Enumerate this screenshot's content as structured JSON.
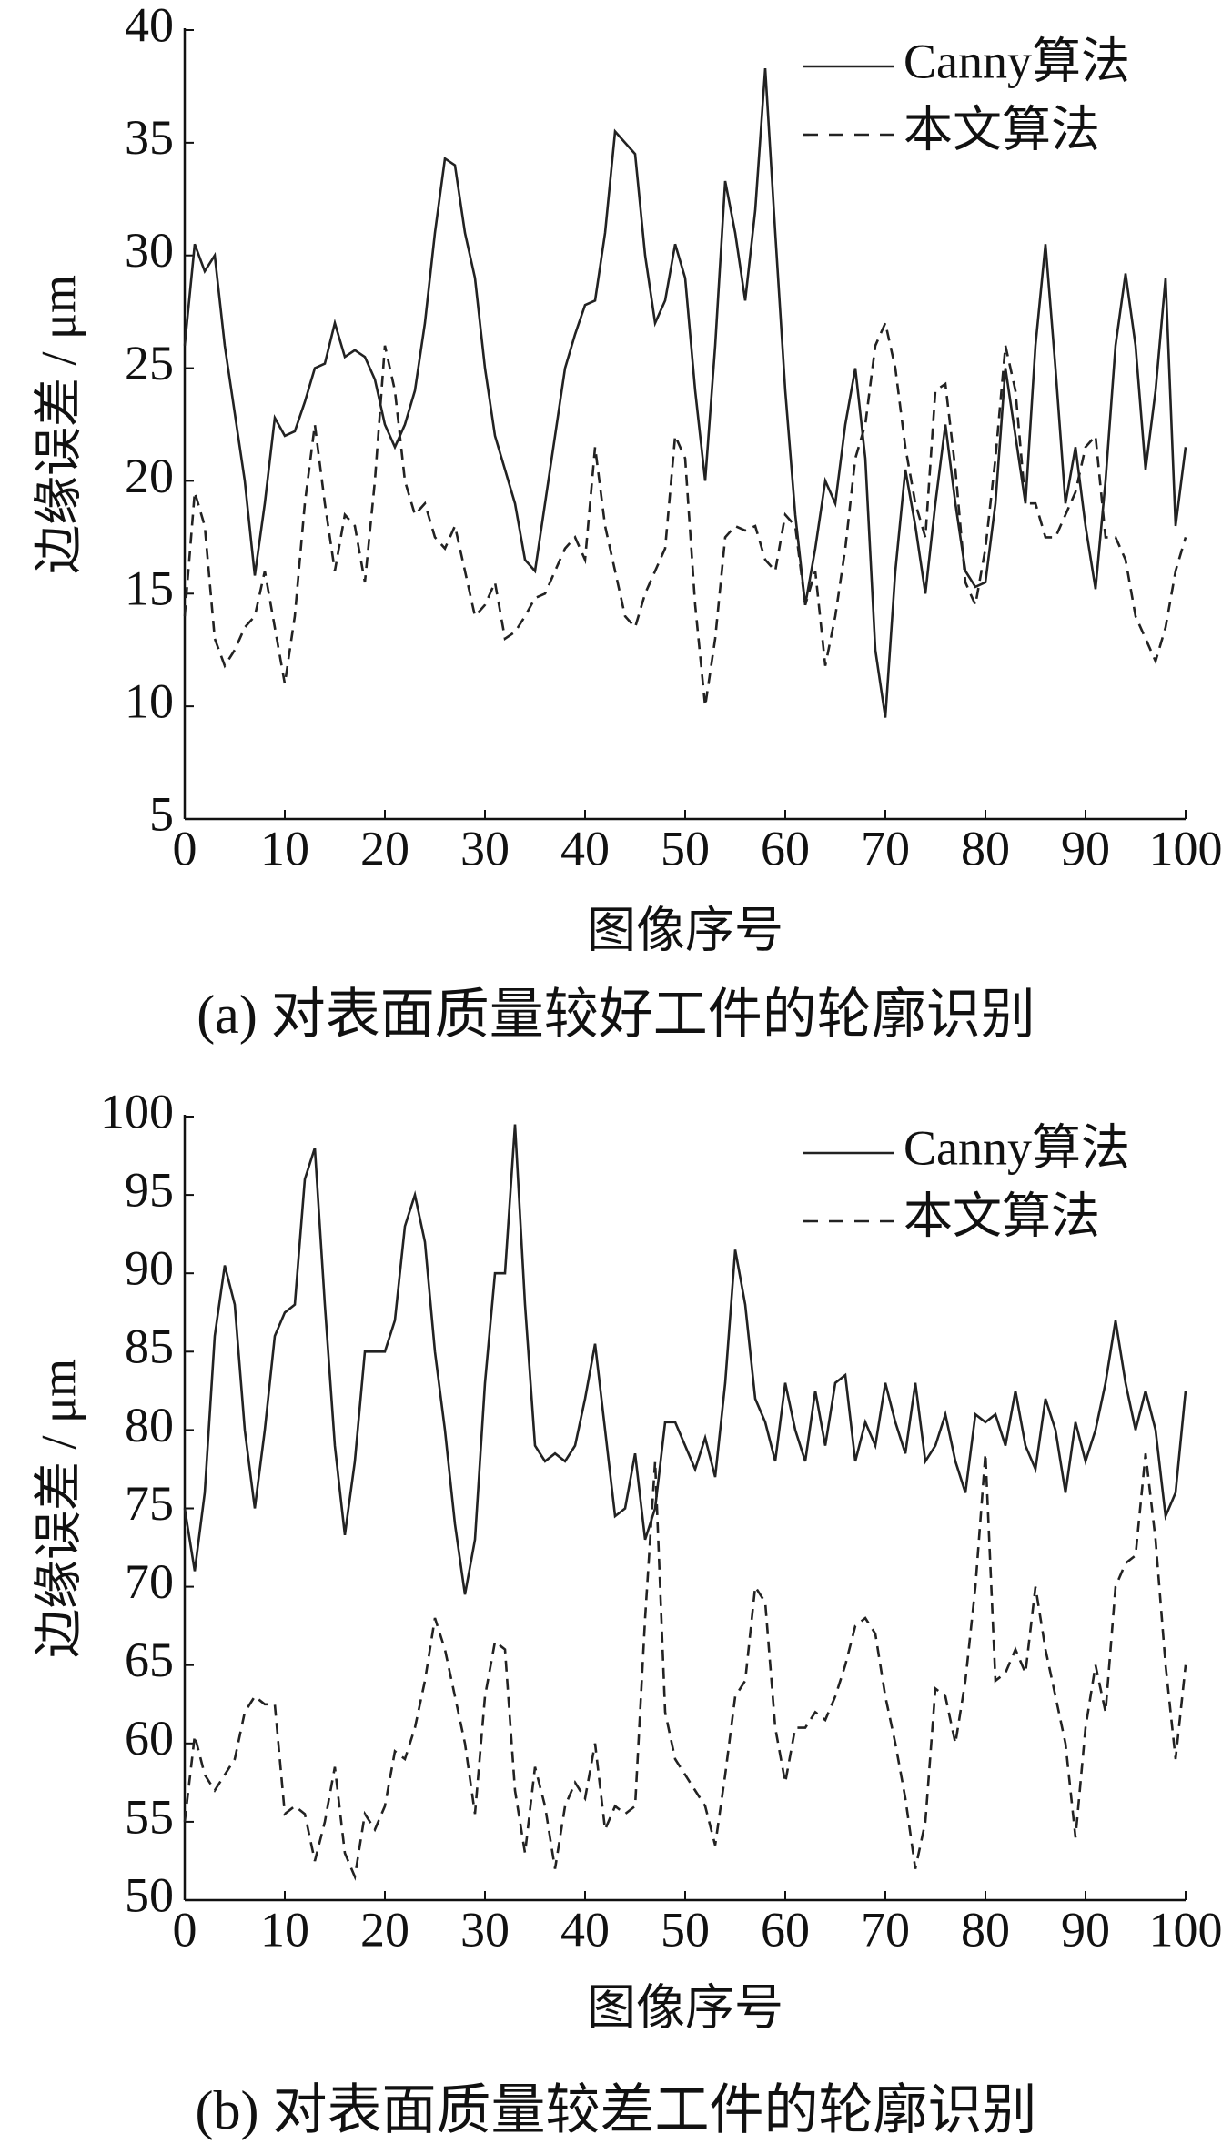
{
  "chart_data": [
    {
      "type": "line",
      "title": "(a)  对表面质量较好工件的轮廓识别",
      "xlabel": "图像序号",
      "ylabel": "边缘误差 / μm",
      "xlim": [
        0,
        100
      ],
      "xticks": [
        0,
        10,
        20,
        30,
        40,
        50,
        60,
        70,
        80,
        90,
        100
      ],
      "ylim": [
        5,
        40
      ],
      "yticks": [
        5,
        10,
        15,
        20,
        25,
        30,
        35,
        40
      ],
      "legend": "upper right",
      "x": [
        0,
        1,
        2,
        3,
        4,
        5,
        6,
        7,
        8,
        9,
        10,
        11,
        12,
        13,
        14,
        15,
        16,
        17,
        18,
        19,
        20,
        21,
        22,
        23,
        24,
        25,
        26,
        27,
        28,
        29,
        30,
        31,
        32,
        33,
        34,
        35,
        36,
        37,
        38,
        39,
        40,
        41,
        42,
        43,
        44,
        45,
        46,
        47,
        48,
        49,
        50,
        51,
        52,
        53,
        54,
        55,
        56,
        57,
        58,
        59,
        60,
        61,
        62,
        63,
        64,
        65,
        66,
        67,
        68,
        69,
        70,
        71,
        72,
        73,
        74,
        75,
        76,
        77,
        78,
        79,
        80,
        81,
        82,
        83,
        84,
        85,
        86,
        87,
        88,
        89,
        90,
        91,
        92,
        93,
        94,
        95,
        96,
        97,
        98,
        99,
        100
      ],
      "series": [
        {
          "name": "Canny算法",
          "color": "#222222",
          "dash": "solid",
          "values": [
            26,
            30.5,
            29.3,
            30,
            26,
            23,
            20,
            15.8,
            19,
            22.8,
            22,
            22.2,
            23.5,
            25,
            25.2,
            27,
            25.5,
            25.8,
            25.5,
            24.5,
            22.5,
            21.5,
            22.5,
            24,
            27,
            31,
            34.3,
            34,
            31,
            29,
            25,
            22,
            20.5,
            19,
            16.5,
            16,
            19,
            22,
            25,
            26.5,
            27.8,
            28,
            31,
            35.5,
            35,
            34.5,
            30,
            27,
            28,
            30.5,
            29,
            24,
            20,
            26,
            33.3,
            31,
            28,
            32,
            38.3,
            31,
            24,
            18.5,
            14.5,
            17,
            20,
            19,
            22.5,
            25,
            21,
            12.5,
            9.5,
            16,
            20.5,
            18,
            15,
            19,
            22.5,
            19,
            16,
            15.3,
            15.5,
            19,
            25,
            22,
            19,
            26,
            30.5,
            25,
            19,
            21.5,
            18,
            15.2,
            20,
            26,
            29.2,
            26,
            20.5,
            24,
            29,
            18,
            21.5
          ]
        },
        {
          "name": "本文算法",
          "color": "#222222",
          "dash": "dashed",
          "values": [
            14,
            19.5,
            18,
            13,
            11.8,
            12.5,
            13.5,
            14,
            16,
            13.5,
            11,
            14,
            19,
            22.5,
            19,
            16,
            18.5,
            18,
            15.5,
            20,
            26,
            24,
            20,
            18.5,
            19,
            17.5,
            17,
            18,
            16,
            14,
            14.5,
            15.5,
            13,
            13.3,
            14,
            14.8,
            15,
            16,
            17,
            17.5,
            16.5,
            21.5,
            18,
            16,
            14,
            13.5,
            15,
            16,
            17,
            22,
            21,
            14.5,
            10,
            13,
            17.5,
            18,
            17.8,
            18,
            16.5,
            16,
            18.5,
            18,
            14.5,
            16,
            11.8,
            14,
            17,
            21,
            22.5,
            26,
            27,
            25,
            21.5,
            19,
            17.5,
            24,
            24.3,
            20.5,
            15.5,
            14.5,
            17,
            21,
            26,
            24,
            19,
            19,
            17.5,
            17.5,
            18.5,
            19.5,
            21.5,
            22,
            17.5,
            17.5,
            16.5,
            14,
            13,
            12,
            13.5,
            16,
            17.5
          ]
        }
      ]
    },
    {
      "type": "line",
      "title": "(b)  对表面质量较差工件的轮廓识别",
      "xlabel": "图像序号",
      "ylabel": "边缘误差 / μm",
      "xlim": [
        0,
        100
      ],
      "xticks": [
        0,
        10,
        20,
        30,
        40,
        50,
        60,
        70,
        80,
        90,
        100
      ],
      "ylim": [
        50,
        100
      ],
      "yticks": [
        50,
        55,
        60,
        65,
        70,
        75,
        80,
        85,
        90,
        95,
        100
      ],
      "legend": "upper right",
      "x": [
        0,
        1,
        2,
        3,
        4,
        5,
        6,
        7,
        8,
        9,
        10,
        11,
        12,
        13,
        14,
        15,
        16,
        17,
        18,
        19,
        20,
        21,
        22,
        23,
        24,
        25,
        26,
        27,
        28,
        29,
        30,
        31,
        32,
        33,
        34,
        35,
        36,
        37,
        38,
        39,
        40,
        41,
        42,
        43,
        44,
        45,
        46,
        47,
        48,
        49,
        50,
        51,
        52,
        53,
        54,
        55,
        56,
        57,
        58,
        59,
        60,
        61,
        62,
        63,
        64,
        65,
        66,
        67,
        68,
        69,
        70,
        71,
        72,
        73,
        74,
        75,
        76,
        77,
        78,
        79,
        80,
        81,
        82,
        83,
        84,
        85,
        86,
        87,
        88,
        89,
        90,
        91,
        92,
        93,
        94,
        95,
        96,
        97,
        98,
        99,
        100
      ],
      "series": [
        {
          "name": "Canny算法",
          "color": "#222222",
          "dash": "solid",
          "values": [
            75,
            71,
            76,
            86,
            90.5,
            88,
            80,
            75,
            80,
            86,
            87.5,
            88,
            96,
            98,
            88,
            79,
            73.3,
            78,
            85,
            85,
            85,
            87,
            93,
            95,
            92,
            85,
            80,
            74,
            69.5,
            73,
            83,
            90,
            90,
            99.5,
            88,
            79,
            78,
            78.5,
            78,
            79,
            82,
            85.5,
            80,
            74.5,
            75,
            78.5,
            73,
            75,
            80.5,
            80.5,
            79,
            77.5,
            79.5,
            77,
            83,
            91.5,
            88,
            82,
            80.5,
            78,
            83,
            80,
            78,
            82.5,
            79,
            83,
            83.5,
            78,
            80.5,
            79,
            83,
            80.5,
            78.5,
            83,
            78,
            79,
            81,
            78,
            76,
            81,
            80.5,
            81,
            79,
            82.5,
            79,
            77.5,
            82,
            80,
            76,
            80.5,
            78,
            80,
            83,
            87,
            83,
            80,
            82.5,
            80,
            74.5,
            76,
            82.5
          ]
        },
        {
          "name": "本文算法",
          "color": "#222222",
          "dash": "dashed",
          "values": [
            55,
            60.5,
            58,
            57,
            58,
            59,
            62,
            63,
            62.5,
            62.5,
            55.5,
            56,
            55.5,
            52.5,
            55,
            58.5,
            53,
            51.5,
            55.5,
            54.5,
            56,
            59.5,
            59,
            61,
            64,
            68,
            66,
            63,
            60,
            55.5,
            63,
            66.5,
            66,
            57,
            53,
            58.5,
            56,
            52,
            56,
            57.5,
            56.5,
            60,
            54.5,
            56,
            55.5,
            56,
            68,
            78,
            62,
            59,
            58,
            57,
            56,
            53.5,
            58,
            63,
            64,
            70,
            69,
            61,
            57.5,
            61,
            61,
            62,
            61.5,
            63,
            65,
            67.5,
            68,
            67,
            63,
            60,
            56.5,
            52,
            55,
            63.5,
            63,
            60,
            64,
            70,
            78.5,
            64,
            64.5,
            66,
            64.5,
            70,
            66,
            63,
            60,
            54,
            61,
            65,
            62,
            70,
            71.5,
            72,
            78.5,
            73,
            65,
            59,
            65
          ]
        }
      ]
    }
  ]
}
